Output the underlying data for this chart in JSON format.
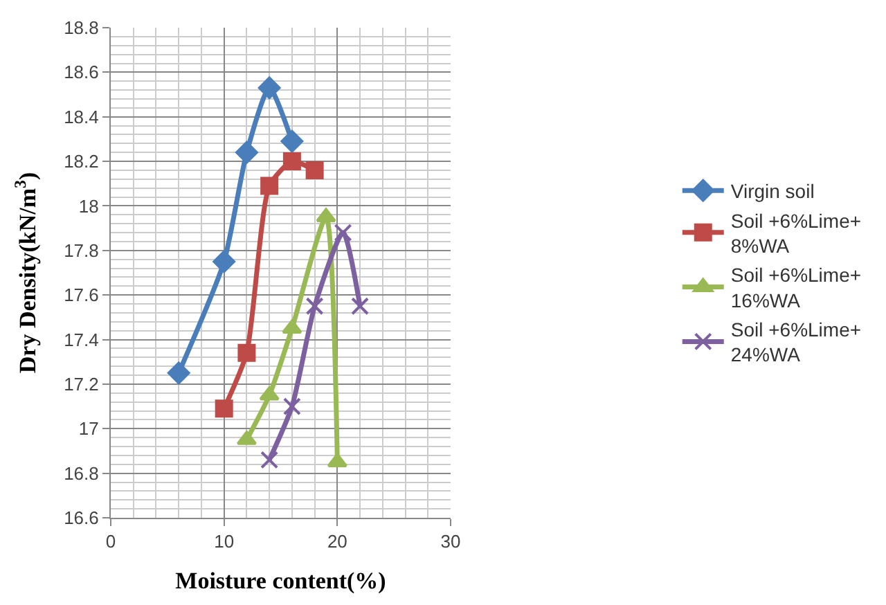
{
  "chart_data": {
    "type": "line",
    "xlabel": "Moisture content(%)",
    "ylabel": "Dry Density(kN/m$^{3}$)",
    "xlim": [
      0,
      30
    ],
    "xticks": [
      0,
      10,
      20,
      30
    ],
    "ylim": [
      16.6,
      18.8
    ],
    "yticks": [
      16.6,
      16.8,
      17,
      17.2,
      17.4,
      17.6,
      17.8,
      18,
      18.2,
      18.4,
      18.6,
      18.8
    ],
    "grid": true,
    "legend": "right",
    "series": [
      {
        "name": "Virgin soil",
        "color": "#4a7ebb",
        "marker": "diamond",
        "x": [
          6,
          10,
          12,
          14,
          16
        ],
        "values": [
          17.25,
          17.75,
          18.24,
          18.53,
          18.29
        ]
      },
      {
        "name": "Soil +6%Lime+ 8%WA",
        "color": "#be4b48",
        "marker": "square",
        "x": [
          10,
          12,
          14,
          16,
          18
        ],
        "values": [
          17.09,
          17.34,
          18.09,
          18.2,
          18.16
        ]
      },
      {
        "name": "Soil +6%Lime+ 16%WA",
        "color": "#98b954",
        "marker": "triangle",
        "x": [
          12,
          14,
          16,
          19,
          20
        ],
        "values": [
          16.95,
          17.15,
          17.45,
          17.95,
          16.85
        ]
      },
      {
        "name": "Soil +6%Lime+ 24%WA",
        "color": "#7d60a0",
        "marker": "cross",
        "x": [
          14,
          16,
          18,
          20.5,
          22
        ],
        "values": [
          16.86,
          17.1,
          17.55,
          17.88,
          17.55
        ]
      }
    ]
  }
}
